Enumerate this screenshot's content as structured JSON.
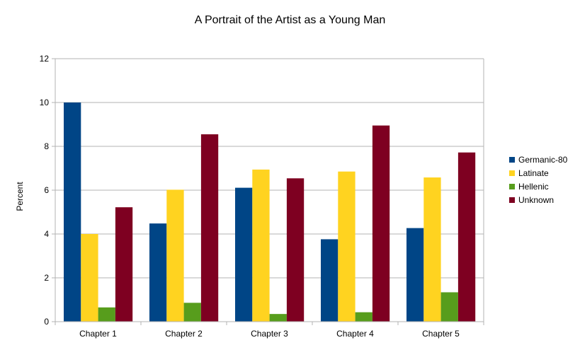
{
  "chart_data": {
    "type": "bar",
    "title": "A Portrait of the Artist as a Young Man",
    "xlabel": "",
    "ylabel": "Percent",
    "ylim": [
      0,
      12
    ],
    "yticks": [
      0,
      2,
      4,
      6,
      8,
      10,
      12
    ],
    "grid": true,
    "legend_position": "right",
    "categories": [
      "Chapter 1",
      "Chapter 2",
      "Chapter 3",
      "Chapter 4",
      "Chapter 5"
    ],
    "series": [
      {
        "name": "Germanic-80",
        "color": "#004586",
        "values": [
          10.0,
          4.48,
          6.11,
          3.76,
          4.27
        ]
      },
      {
        "name": "Latinate",
        "color": "#ffd320",
        "values": [
          4.0,
          6.02,
          6.94,
          6.85,
          6.58
        ]
      },
      {
        "name": "Hellenic",
        "color": "#579d1c",
        "values": [
          0.65,
          0.86,
          0.35,
          0.43,
          1.34
        ]
      },
      {
        "name": "Unknown",
        "color": "#7e0021",
        "values": [
          5.22,
          8.55,
          6.54,
          8.95,
          7.72
        ]
      }
    ]
  }
}
